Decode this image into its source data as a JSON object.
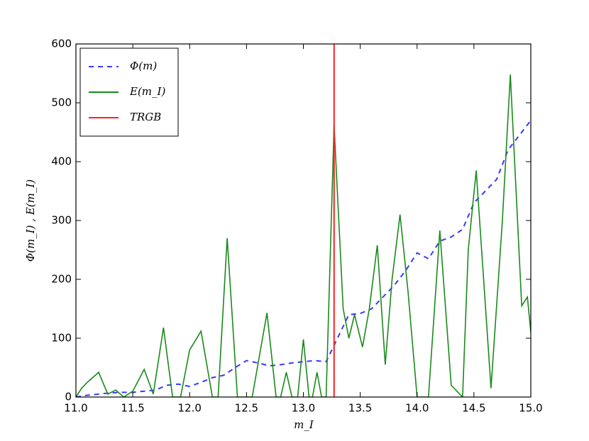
{
  "chart_data": {
    "type": "line",
    "xlabel": "m_I",
    "ylabel": "Φ(m_I) , E(m_I)",
    "xlim": [
      11.0,
      15.0
    ],
    "ylim": [
      0,
      600
    ],
    "xticks": [
      {
        "value": 11.0,
        "label": "11.0"
      },
      11.5,
      {
        "value": 12.0,
        "label": "12.0"
      },
      12.5,
      {
        "value": 13.0,
        "label": "13.0"
      },
      13.5,
      {
        "value": 14.0,
        "label": "14.0"
      },
      14.5,
      {
        "value": 15.0,
        "label": "15.0"
      }
    ],
    "yticks": [
      0,
      100,
      200,
      300,
      400,
      500,
      600
    ],
    "legend": "upper left",
    "series": [
      {
        "name": "Φ(m)",
        "color": "#3a3aff",
        "dashed": true,
        "x": [
          11.0,
          11.1,
          11.2,
          11.3,
          11.4,
          11.5,
          11.6,
          11.7,
          11.8,
          11.9,
          12.0,
          12.1,
          12.2,
          12.3,
          12.4,
          12.5,
          12.6,
          12.7,
          12.8,
          12.9,
          13.0,
          13.1,
          13.2,
          13.3,
          13.4,
          13.5,
          13.6,
          13.7,
          13.8,
          13.9,
          14.0,
          14.1,
          14.2,
          14.3,
          14.4,
          14.5,
          14.6,
          14.7,
          14.8,
          14.9,
          15.0
        ],
        "values": [
          0,
          3,
          5,
          7,
          8,
          8,
          10,
          12,
          20,
          22,
          18,
          25,
          33,
          37,
          50,
          62,
          58,
          53,
          55,
          58,
          60,
          62,
          60,
          100,
          140,
          142,
          150,
          170,
          190,
          215,
          245,
          235,
          265,
          272,
          285,
          330,
          350,
          370,
          420,
          445,
          470
        ]
      },
      {
        "name": "E(m_I)",
        "color": "#1a8a1a",
        "dashed": false,
        "x": [
          11.0,
          11.05,
          11.1,
          11.2,
          11.28,
          11.35,
          11.42,
          11.5,
          11.6,
          11.68,
          11.77,
          11.85,
          11.92,
          12.0,
          12.1,
          12.2,
          12.25,
          12.33,
          12.42,
          12.55,
          12.68,
          12.76,
          12.8,
          12.85,
          12.9,
          12.95,
          13.0,
          13.05,
          13.08,
          13.12,
          13.16,
          13.2,
          13.27,
          13.35,
          13.4,
          13.45,
          13.52,
          13.58,
          13.65,
          13.72,
          13.78,
          13.85,
          13.92,
          14.0,
          14.1,
          14.2,
          14.3,
          14.4,
          14.45,
          14.52,
          14.65,
          14.75,
          14.82,
          14.92,
          14.97,
          15.0
        ],
        "values": [
          0,
          15,
          25,
          42,
          5,
          12,
          0,
          10,
          47,
          5,
          118,
          0,
          0,
          80,
          112,
          0,
          0,
          270,
          0,
          0,
          143,
          0,
          0,
          42,
          0,
          0,
          98,
          0,
          0,
          42,
          0,
          0,
          462,
          150,
          100,
          140,
          85,
          150,
          258,
          55,
          200,
          310,
          180,
          0,
          0,
          283,
          20,
          0,
          250,
          385,
          15,
          300,
          548,
          155,
          170,
          110
        ]
      }
    ],
    "vlines": [
      {
        "name": "TRGB",
        "color": "#ff2020",
        "x": 13.27
      }
    ]
  }
}
